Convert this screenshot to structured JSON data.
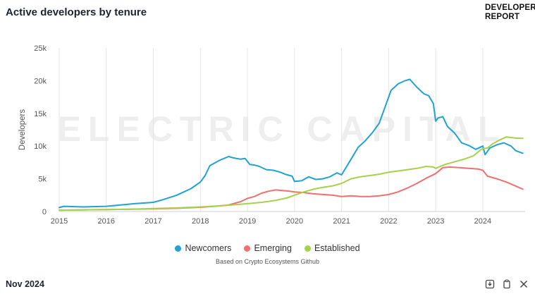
{
  "header": {
    "title": "Active developers by tenure",
    "brand_line1": "DEVELOPER",
    "brand_line2": "REPORT"
  },
  "watermark": "ELECTRIC CAPITAL",
  "footer": {
    "date": "Nov 2024",
    "icons": [
      "download-icon",
      "copy-icon",
      "x-share-icon"
    ]
  },
  "source_note": "Based on Crypto Ecosystems Github",
  "colors": {
    "Newcomers": "#1fa3d1",
    "Emerging": "#f07070",
    "Established": "#a6d24a",
    "grid": "#e6e6e6",
    "axis_text": "#555555"
  },
  "chart_data": {
    "type": "line",
    "title": "Active developers by tenure",
    "ylabel": "Developers",
    "xlabel": "",
    "xlim": [
      2015.0,
      2024.9
    ],
    "ylim": [
      0,
      25000
    ],
    "yticks": [
      0,
      5000,
      10000,
      15000,
      20000,
      25000
    ],
    "ytick_labels": [
      "0",
      "5k",
      "10k",
      "15k",
      "20k",
      "25k"
    ],
    "xticks": [
      2015,
      2016,
      2017,
      2018,
      2019,
      2020,
      2021,
      2022,
      2023,
      2024
    ],
    "xtick_labels": [
      "2015",
      "2016",
      "2017",
      "2018",
      "2019",
      "2020",
      "2021",
      "2022",
      "2023",
      "2024"
    ],
    "grid": "vertical",
    "legend": "bottom",
    "series": [
      {
        "name": "Newcomers",
        "x": [
          2015.0,
          2015.1,
          2015.5,
          2016.0,
          2016.3,
          2016.6,
          2017.0,
          2017.2,
          2017.5,
          2017.8,
          2018.0,
          2018.1,
          2018.2,
          2018.4,
          2018.6,
          2018.7,
          2018.85,
          2018.95,
          2019.05,
          2019.15,
          2019.25,
          2019.4,
          2019.55,
          2019.7,
          2019.8,
          2019.95,
          2020.0,
          2020.15,
          2020.3,
          2020.45,
          2020.6,
          2020.75,
          2020.9,
          2021.0,
          2021.1,
          2021.2,
          2021.35,
          2021.5,
          2021.65,
          2021.8,
          2021.9,
          2022.0,
          2022.05,
          2022.2,
          2022.35,
          2022.45,
          2022.6,
          2022.75,
          2022.85,
          2022.95,
          2023.0,
          2023.05,
          2023.15,
          2023.25,
          2023.4,
          2023.55,
          2023.7,
          2023.85,
          2024.0,
          2024.05,
          2024.15,
          2024.3,
          2024.45,
          2024.6,
          2024.7,
          2024.85
        ],
        "values": [
          600,
          800,
          700,
          800,
          1000,
          1200,
          1400,
          1800,
          2500,
          3500,
          4500,
          5500,
          7000,
          7800,
          8400,
          8200,
          8000,
          8100,
          7200,
          7100,
          6900,
          6400,
          6300,
          6000,
          5700,
          5400,
          4600,
          4700,
          5300,
          4900,
          5000,
          5300,
          5900,
          5600,
          6800,
          8000,
          9800,
          10800,
          12000,
          13500,
          15500,
          17500,
          18500,
          19500,
          20000,
          20200,
          19000,
          18000,
          17700,
          16500,
          13800,
          14300,
          14500,
          13000,
          12000,
          10500,
          10100,
          9500,
          10000,
          8700,
          9700,
          10200,
          10500,
          10000,
          9300,
          8900
        ]
      },
      {
        "name": "Emerging",
        "x": [
          2015.0,
          2015.5,
          2016.0,
          2016.5,
          2017.0,
          2017.5,
          2018.0,
          2018.3,
          2018.6,
          2018.85,
          2019.0,
          2019.15,
          2019.3,
          2019.45,
          2019.6,
          2019.75,
          2019.9,
          2020.0,
          2020.2,
          2020.4,
          2020.6,
          2020.8,
          2021.0,
          2021.2,
          2021.4,
          2021.6,
          2021.8,
          2022.0,
          2022.2,
          2022.4,
          2022.6,
          2022.8,
          2023.0,
          2023.15,
          2023.3,
          2023.5,
          2023.7,
          2023.9,
          2024.0,
          2024.1,
          2024.3,
          2024.5,
          2024.7,
          2024.85
        ],
        "values": [
          200,
          250,
          300,
          350,
          400,
          500,
          650,
          800,
          1000,
          1500,
          2000,
          2300,
          2800,
          3100,
          3300,
          3200,
          3100,
          3000,
          2900,
          2700,
          2600,
          2500,
          2300,
          2400,
          2300,
          2300,
          2400,
          2600,
          3000,
          3600,
          4300,
          5100,
          5800,
          6700,
          6800,
          6700,
          6600,
          6500,
          6300,
          5400,
          5000,
          4500,
          3900,
          3400
        ]
      },
      {
        "name": "Established",
        "x": [
          2015.0,
          2015.5,
          2016.0,
          2016.5,
          2017.0,
          2017.5,
          2018.0,
          2018.5,
          2019.0,
          2019.3,
          2019.6,
          2019.85,
          2020.0,
          2020.2,
          2020.4,
          2020.6,
          2020.8,
          2021.0,
          2021.2,
          2021.4,
          2021.6,
          2021.8,
          2022.0,
          2022.2,
          2022.4,
          2022.6,
          2022.8,
          2022.95,
          2023.0,
          2023.2,
          2023.4,
          2023.6,
          2023.8,
          2023.95,
          2024.0,
          2024.1,
          2024.2,
          2024.35,
          2024.5,
          2024.6,
          2024.75,
          2024.85
        ],
        "values": [
          200,
          250,
          300,
          350,
          450,
          550,
          700,
          900,
          1200,
          1400,
          1700,
          2100,
          2500,
          3000,
          3400,
          3700,
          3900,
          4300,
          5000,
          5300,
          5500,
          5700,
          6000,
          6200,
          6400,
          6600,
          6900,
          6800,
          6600,
          7200,
          7600,
          8000,
          8500,
          9400,
          9600,
          9700,
          10300,
          10900,
          11400,
          11300,
          11200,
          11200
        ]
      }
    ]
  }
}
